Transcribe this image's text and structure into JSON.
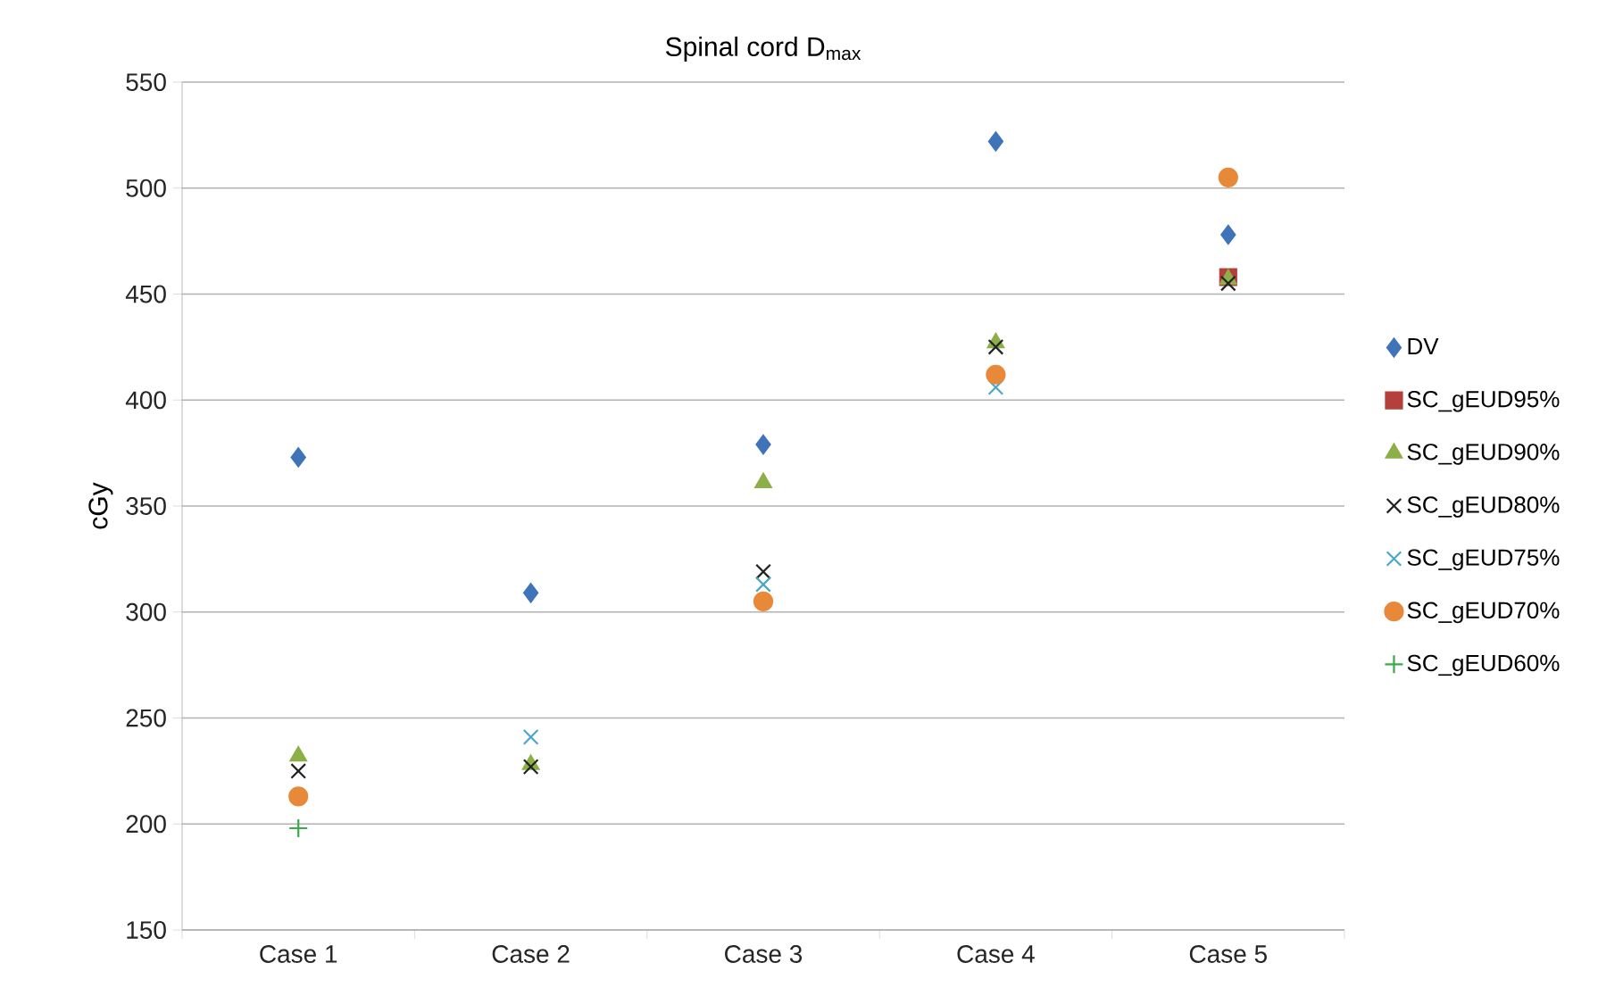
{
  "chart_data": {
    "type": "scatter",
    "title": "Spinal cord D$_{max}$",
    "ylabel": "cGy",
    "categories": [
      "Case 1",
      "Case 2",
      "Case 3",
      "Case 4",
      "Case 5"
    ],
    "ylim": [
      150,
      550
    ],
    "yticks": [
      150,
      200,
      250,
      300,
      350,
      400,
      450,
      500,
      550
    ],
    "grid": "y",
    "legend": "right",
    "series": [
      {
        "name": "DV",
        "color": "#3f74b8",
        "marker": "diamond",
        "values": [
          373,
          309,
          379,
          522,
          478
        ]
      },
      {
        "name": "SC_gEUD95%",
        "color": "#b5403b",
        "marker": "square",
        "values": [
          null,
          null,
          null,
          null,
          458
        ]
      },
      {
        "name": "SC_gEUD90%",
        "color": "#8caf48",
        "marker": "triangle",
        "values": [
          232,
          228,
          361,
          427,
          457
        ]
      },
      {
        "name": "SC_gEUD80%",
        "color": "#222222",
        "marker": "cross",
        "values": [
          225,
          227,
          319,
          425,
          455
        ]
      },
      {
        "name": "SC_gEUD75%",
        "color": "#4ba6c8",
        "marker": "cross",
        "values": [
          null,
          241,
          313,
          406,
          null
        ]
      },
      {
        "name": "SC_gEUD70%",
        "color": "#e8893a",
        "marker": "circle",
        "values": [
          213,
          null,
          305,
          412,
          505
        ]
      },
      {
        "name": "SC_gEUD60%",
        "color": "#3aaa4a",
        "marker": "plus",
        "values": [
          198,
          null,
          null,
          null,
          null
        ]
      }
    ]
  }
}
